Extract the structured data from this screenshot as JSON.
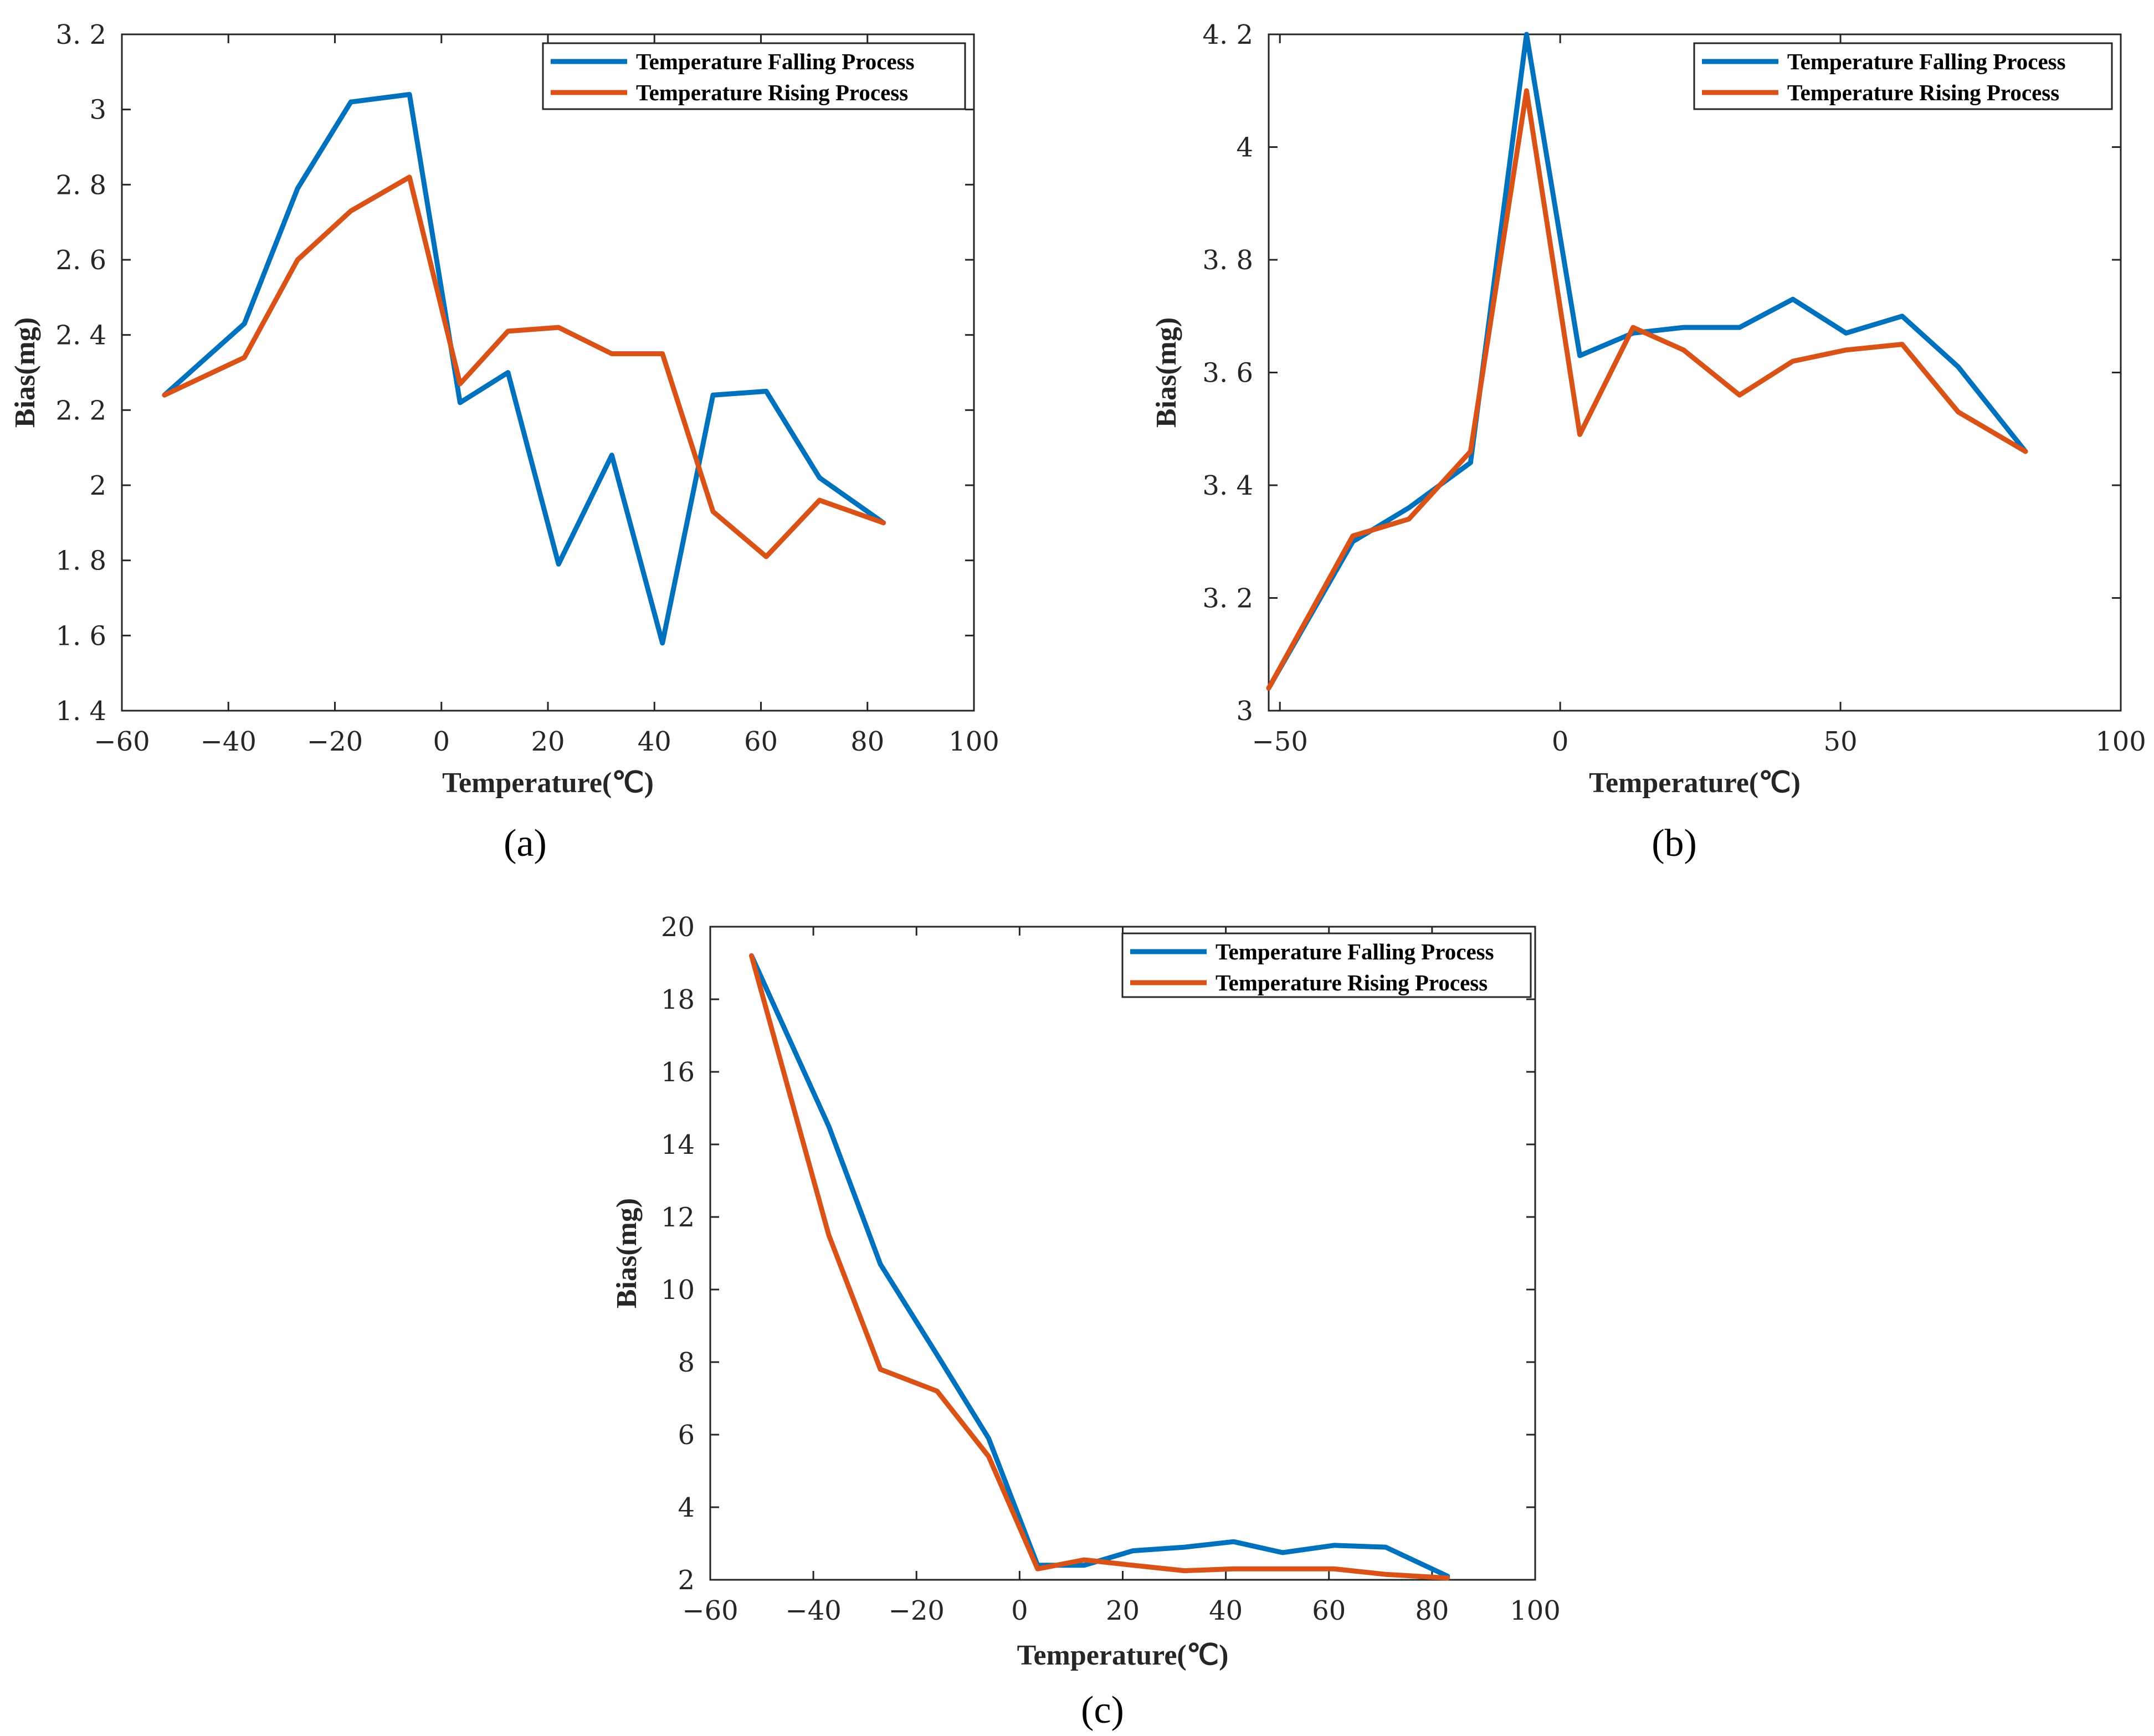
{
  "colors": {
    "falling": "#0072BD",
    "rising": "#D95319",
    "axis": "#262626",
    "background": "#ffffff"
  },
  "chart_data": [
    {
      "panel": "(a)",
      "panel_letter": "a",
      "type": "line",
      "xlabel": "Temperature(℃)",
      "ylabel": "Bias(mg)",
      "xlim": [
        -60,
        100
      ],
      "ylim": [
        1.4,
        3.2
      ],
      "xticks": [
        -60,
        -40,
        -20,
        0,
        20,
        40,
        60,
        80,
        100
      ],
      "xtick_labels": [
        "−60",
        "−40",
        "−20",
        "0",
        "20",
        "40",
        "60",
        "80",
        "100"
      ],
      "yticks": [
        1.4,
        1.6,
        1.8,
        2.0,
        2.2,
        2.4,
        2.6,
        2.8,
        3.0,
        3.2
      ],
      "ytick_labels": [
        "1. 4",
        "1. 6",
        "1. 8",
        "2",
        "2. 2",
        "2. 4",
        "2. 6",
        "2. 8",
        "3",
        "3. 2"
      ],
      "legend_position": "top-right",
      "grid": false,
      "series": [
        {
          "name": "Temperature Falling Process",
          "color_key": "falling",
          "x": [
            -52,
            -37,
            -27,
            -17,
            -6,
            3.5,
            12.5,
            22,
            32,
            41.5,
            51,
            61,
            71,
            83
          ],
          "y": [
            2.24,
            2.43,
            2.79,
            3.02,
            3.04,
            2.22,
            2.3,
            1.79,
            2.08,
            1.58,
            2.24,
            2.25,
            2.02,
            1.9
          ]
        },
        {
          "name": "Temperature Rising Process",
          "color_key": "rising",
          "x": [
            -52,
            -37,
            -27,
            -17,
            -6,
            3.5,
            12.5,
            22,
            32,
            41.5,
            51,
            61,
            71,
            83
          ],
          "y": [
            2.24,
            2.34,
            2.6,
            2.73,
            2.82,
            2.27,
            2.41,
            2.42,
            2.35,
            2.35,
            1.93,
            1.81,
            1.96,
            1.9
          ]
        }
      ]
    },
    {
      "panel": "(b)",
      "panel_letter": "b",
      "type": "line",
      "xlabel": "Temperature(℃)",
      "ylabel": "Bias(mg)",
      "xlim": [
        -52,
        100
      ],
      "ylim": [
        3.0,
        4.2
      ],
      "xticks": [
        -50,
        0,
        50,
        100
      ],
      "xtick_labels": [
        "−50",
        "0",
        "50",
        "100"
      ],
      "yticks": [
        3.0,
        3.2,
        3.4,
        3.6,
        3.8,
        4.0,
        4.2
      ],
      "ytick_labels": [
        "3",
        "3. 2",
        "3. 4",
        "3. 6",
        "3. 8",
        "4",
        "4. 2"
      ],
      "legend_position": "top-right",
      "grid": false,
      "series": [
        {
          "name": "Temperature Falling Process",
          "color_key": "falling",
          "x": [
            -52,
            -37,
            -27,
            -16,
            -6,
            3.5,
            13,
            22,
            32,
            41.5,
            51,
            61,
            71,
            83
          ],
          "y": [
            3.04,
            3.3,
            3.36,
            3.44,
            4.2,
            3.63,
            3.67,
            3.68,
            3.68,
            3.73,
            3.67,
            3.7,
            3.61,
            3.46
          ]
        },
        {
          "name": "Temperature Rising Process",
          "color_key": "rising",
          "x": [
            -52,
            -37,
            -27,
            -16,
            -6,
            3.5,
            13,
            22,
            32,
            41.5,
            51,
            61,
            71,
            83
          ],
          "y": [
            3.04,
            3.31,
            3.34,
            3.46,
            4.1,
            3.49,
            3.68,
            3.64,
            3.56,
            3.62,
            3.64,
            3.65,
            3.53,
            3.46
          ]
        }
      ]
    },
    {
      "panel": "(c)",
      "panel_letter": "c",
      "type": "line",
      "xlabel": "Temperature(℃)",
      "ylabel": "Bias(mg)",
      "xlim": [
        -60,
        100
      ],
      "ylim": [
        2,
        20
      ],
      "xticks": [
        -60,
        -40,
        -20,
        0,
        20,
        40,
        60,
        80,
        100
      ],
      "xtick_labels": [
        "−60",
        "−40",
        "−20",
        "0",
        "20",
        "40",
        "60",
        "80",
        "100"
      ],
      "yticks": [
        2,
        4,
        6,
        8,
        10,
        12,
        14,
        16,
        18,
        20
      ],
      "ytick_labels": [
        "2",
        "4",
        "6",
        "8",
        "10",
        "12",
        "14",
        "16",
        "18",
        "20"
      ],
      "legend_position": "top-right",
      "grid": false,
      "series": [
        {
          "name": "Temperature Falling Process",
          "color_key": "falling",
          "x": [
            -52,
            -37,
            -27,
            -16,
            -6,
            3.5,
            12.5,
            22,
            32,
            41.5,
            51,
            61,
            71,
            83
          ],
          "y": [
            19.2,
            14.5,
            10.7,
            8.2,
            5.9,
            2.4,
            2.4,
            2.8,
            2.9,
            3.05,
            2.75,
            2.95,
            2.9,
            2.1
          ]
        },
        {
          "name": "Temperature Rising Process",
          "color_key": "rising",
          "x": [
            -52,
            -37,
            -27,
            -16,
            -6,
            3.5,
            12.5,
            22,
            32,
            41.5,
            51,
            61,
            71,
            83
          ],
          "y": [
            19.2,
            11.5,
            7.8,
            7.2,
            5.4,
            2.3,
            2.55,
            2.4,
            2.25,
            2.3,
            2.3,
            2.3,
            2.15,
            2.05
          ]
        }
      ]
    }
  ]
}
